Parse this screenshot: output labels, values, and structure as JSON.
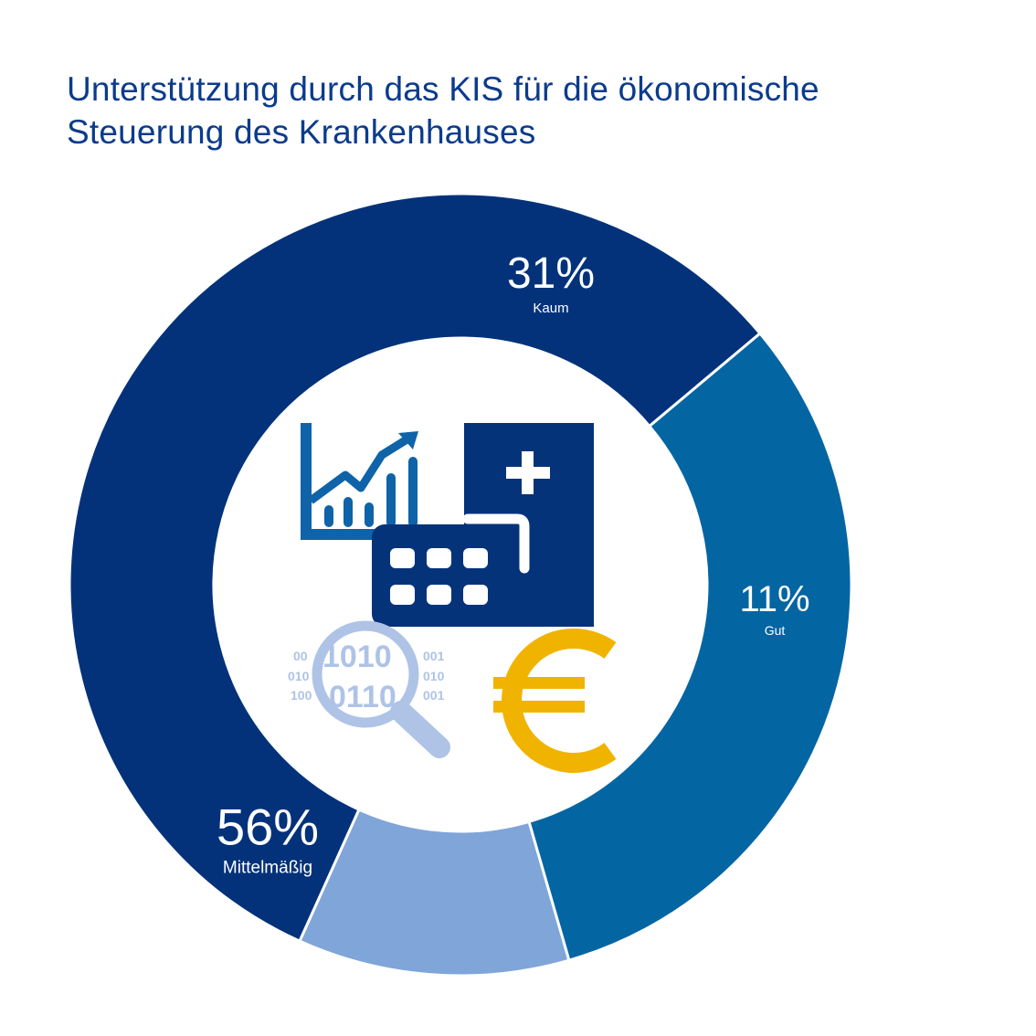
{
  "title_lines": [
    "Unterstützung durch das KIS für die ökonomische",
    "Steuerung des Krankenhauses"
  ],
  "colors": {
    "title": "#0b3b8c",
    "background": "#ffffff",
    "separator": "#ffffff",
    "icon_dark": "#04337a",
    "icon_mid": "#0f63a8",
    "icon_light": "#aec3e6",
    "euro": "#f0b400"
  },
  "icons": [
    "bar-chart-trend-icon",
    "hospital-building-icon",
    "magnifier-binary-data-icon",
    "euro-icon"
  ],
  "chart_data": {
    "type": "pie",
    "style": "donut",
    "title": "Unterstützung durch das KIS für die ökonomische Steuerung des Krankenhauses",
    "slices": [
      {
        "label": "Kaum",
        "value": 31,
        "display": "31%",
        "color": "#0465a3"
      },
      {
        "label": "Gut",
        "value": 11,
        "display": "11%",
        "color": "#7fa5d9"
      },
      {
        "label": "Mittelmäßig",
        "value": 56,
        "display": "56%",
        "color": "#03327a"
      }
    ],
    "start_angle_deg": -40,
    "direction": "clockwise",
    "legend": "none"
  }
}
